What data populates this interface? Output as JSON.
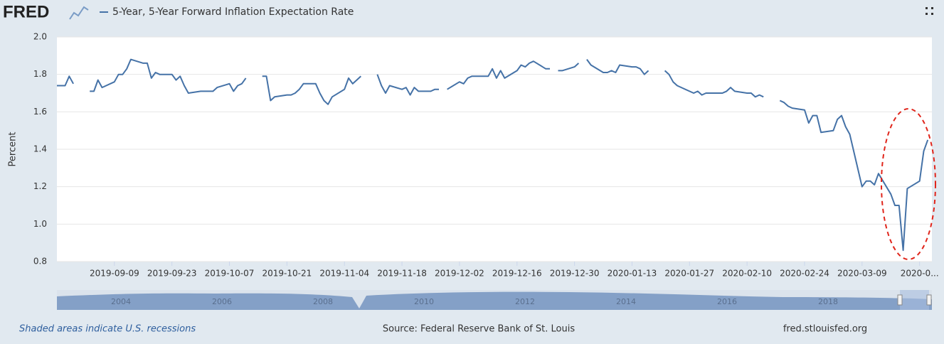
{
  "header": {
    "logo": "FRED"
  },
  "chart_data": {
    "type": "line",
    "y_label": "Percent",
    "grid": true,
    "xlim": [
      "2019-08-26",
      "2020-03-26"
    ],
    "ylim": [
      0.8,
      2.0
    ],
    "yticks": [
      {
        "value": 0.8,
        "label": "0.8"
      },
      {
        "value": 1.0,
        "label": "1.0"
      },
      1.2,
      1.4,
      1.6,
      1.8,
      {
        "value": 2.0,
        "label": "2.0"
      }
    ],
    "xticks": [
      "2019-09-09",
      "2019-09-23",
      "2019-10-07",
      "2019-10-21",
      "2019-11-04",
      "2019-11-18",
      "2019-12-02",
      "2019-12-16",
      "2019-12-30",
      "2020-01-13",
      "2020-01-27",
      "2020-02-10",
      "2020-02-24",
      "2020-03-09",
      {
        "value": "2020-03-23",
        "label": "2020-0..."
      }
    ],
    "x": [
      "2019-08-26",
      "2019-08-27",
      "2019-08-28",
      "2019-08-29",
      "2019-08-30",
      "2019-09-02",
      "2019-09-03",
      "2019-09-04",
      "2019-09-05",
      "2019-09-06",
      "2019-09-09",
      "2019-09-10",
      "2019-09-11",
      "2019-09-12",
      "2019-09-13",
      "2019-09-16",
      "2019-09-17",
      "2019-09-18",
      "2019-09-19",
      "2019-09-20",
      "2019-09-23",
      "2019-09-24",
      "2019-09-25",
      "2019-09-26",
      "2019-09-27",
      "2019-09-30",
      "2019-10-01",
      "2019-10-02",
      "2019-10-03",
      "2019-10-04",
      "2019-10-07",
      "2019-10-08",
      "2019-10-09",
      "2019-10-10",
      "2019-10-11",
      "2019-10-14",
      "2019-10-15",
      "2019-10-16",
      "2019-10-17",
      "2019-10-18",
      "2019-10-21",
      "2019-10-22",
      "2019-10-23",
      "2019-10-24",
      "2019-10-25",
      "2019-10-28",
      "2019-10-29",
      "2019-10-30",
      "2019-10-31",
      "2019-11-01",
      "2019-11-04",
      "2019-11-05",
      "2019-11-06",
      "2019-11-07",
      "2019-11-08",
      "2019-11-11",
      "2019-11-12",
      "2019-11-13",
      "2019-11-14",
      "2019-11-15",
      "2019-11-18",
      "2019-11-19",
      "2019-11-20",
      "2019-11-21",
      "2019-11-22",
      "2019-11-25",
      "2019-11-26",
      "2019-11-27",
      "2019-11-28",
      "2019-11-29",
      "2019-12-02",
      "2019-12-03",
      "2019-12-04",
      "2019-12-05",
      "2019-12-06",
      "2019-12-09",
      "2019-12-10",
      "2019-12-11",
      "2019-12-12",
      "2019-12-13",
      "2019-12-16",
      "2019-12-17",
      "2019-12-18",
      "2019-12-19",
      "2019-12-20",
      "2019-12-23",
      "2019-12-24",
      "2019-12-25",
      "2019-12-26",
      "2019-12-27",
      "2019-12-30",
      "2019-12-31",
      "2020-01-01",
      "2020-01-02",
      "2020-01-03",
      "2020-01-06",
      "2020-01-07",
      "2020-01-08",
      "2020-01-09",
      "2020-01-10",
      "2020-01-13",
      "2020-01-14",
      "2020-01-15",
      "2020-01-16",
      "2020-01-17",
      "2020-01-20",
      "2020-01-21",
      "2020-01-22",
      "2020-01-23",
      "2020-01-24",
      "2020-01-27",
      "2020-01-28",
      "2020-01-29",
      "2020-01-30",
      "2020-01-31",
      "2020-02-03",
      "2020-02-04",
      "2020-02-05",
      "2020-02-06",
      "2020-02-07",
      "2020-02-10",
      "2020-02-11",
      "2020-02-12",
      "2020-02-13",
      "2020-02-14",
      "2020-02-17",
      "2020-02-18",
      "2020-02-19",
      "2020-02-20",
      "2020-02-21",
      "2020-02-24",
      "2020-02-25",
      "2020-02-26",
      "2020-02-27",
      "2020-02-28",
      "2020-03-02",
      "2020-03-03",
      "2020-03-04",
      "2020-03-05",
      "2020-03-06",
      "2020-03-09",
      "2020-03-10",
      "2020-03-11",
      "2020-03-12",
      "2020-03-13",
      "2020-03-16",
      "2020-03-17",
      "2020-03-18",
      "2020-03-19",
      "2020-03-20",
      "2020-03-23",
      "2020-03-24",
      "2020-03-25"
    ],
    "series": [
      {
        "name": "5-Year, 5-Year Forward Inflation Expectation Rate",
        "color": "#4572a7",
        "values": [
          1.74,
          1.74,
          1.74,
          1.79,
          1.75,
          null,
          1.71,
          1.71,
          1.77,
          1.73,
          1.76,
          1.8,
          1.8,
          1.83,
          1.88,
          1.86,
          1.86,
          1.78,
          1.81,
          1.8,
          1.8,
          1.77,
          1.79,
          1.74,
          1.7,
          1.71,
          1.71,
          1.71,
          1.71,
          1.73,
          1.75,
          1.71,
          1.74,
          1.75,
          1.78,
          null,
          1.79,
          1.79,
          1.66,
          1.68,
          1.69,
          1.69,
          1.7,
          1.72,
          1.75,
          1.75,
          1.7,
          1.66,
          1.64,
          1.68,
          1.72,
          1.78,
          1.75,
          1.77,
          1.79,
          null,
          1.8,
          1.74,
          1.7,
          1.74,
          1.72,
          1.73,
          1.69,
          1.73,
          1.71,
          1.71,
          1.72,
          1.72,
          null,
          1.72,
          1.76,
          1.75,
          1.78,
          1.79,
          1.79,
          1.79,
          1.83,
          1.78,
          1.82,
          1.78,
          1.82,
          1.85,
          1.84,
          1.86,
          1.87,
          1.83,
          1.83,
          null,
          1.82,
          1.82,
          1.84,
          1.86,
          null,
          1.88,
          1.85,
          1.81,
          1.81,
          1.82,
          1.81,
          1.85,
          1.84,
          1.84,
          1.83,
          1.8,
          1.82,
          null,
          1.82,
          1.8,
          1.76,
          1.74,
          1.71,
          1.7,
          1.71,
          1.69,
          1.7,
          1.7,
          1.7,
          1.71,
          1.73,
          1.71,
          1.7,
          1.7,
          1.68,
          1.69,
          1.68,
          null,
          1.66,
          1.65,
          1.63,
          1.62,
          1.61,
          1.54,
          1.58,
          1.58,
          1.49,
          1.5,
          1.56,
          1.58,
          1.52,
          1.48,
          1.2,
          1.23,
          1.23,
          1.21,
          1.27,
          1.16,
          1.1,
          1.1,
          0.86,
          1.19,
          1.23,
          1.39,
          1.45
        ]
      }
    ]
  },
  "navigator": {
    "labels": [
      "2004",
      "2006",
      "2008",
      "2010",
      "2012",
      "2014",
      "2016",
      "2018"
    ]
  },
  "footer": {
    "note": "Shaded areas indicate U.S. recessions",
    "source": "Source: Federal Reserve Bank of St. Louis",
    "site": "fred.stlouisfed.org"
  }
}
